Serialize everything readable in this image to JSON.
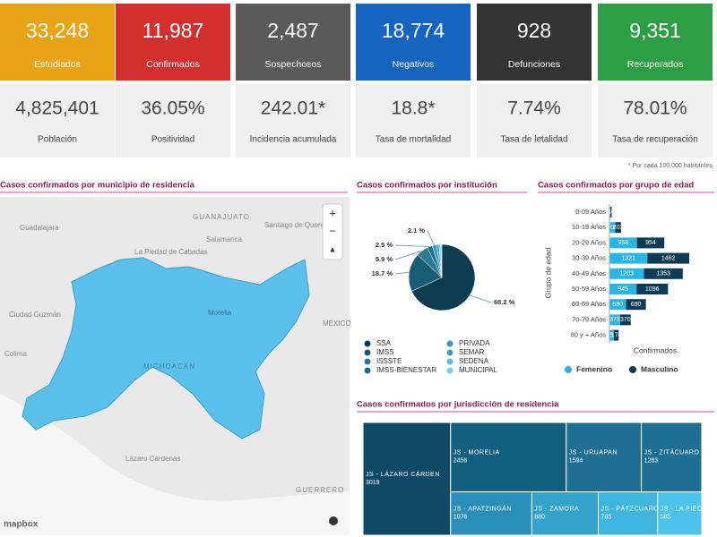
{
  "kpi_cards": [
    {
      "value": "33,248",
      "label": "Estudiados",
      "color": "#e8a317"
    },
    {
      "value": "11,987",
      "label": "Confirmados",
      "color": "#d32f2f"
    },
    {
      "value": "2,487",
      "label": "Sospechosos",
      "color": "#5a5a5a"
    },
    {
      "value": "18,774",
      "label": "Negativos",
      "color": "#1565c0"
    },
    {
      "value": "928",
      "label": "Defunciones",
      "color": "#333333"
    },
    {
      "value": "9,351",
      "label": "Recuperados",
      "color": "#2e9e44"
    }
  ],
  "rate_cards": [
    {
      "value": "4,825,401",
      "label": "Población"
    },
    {
      "value": "36.05%",
      "label": "Positividad"
    },
    {
      "value": "242.01*",
      "label": "Incidencia acumulada"
    },
    {
      "value": "18.8*",
      "label": "Tasa de mortalidad"
    },
    {
      "value": "7.74%",
      "label": "Tasa de letalidad"
    },
    {
      "value": "78.01%",
      "label": "Tasa de recuperación"
    }
  ],
  "footnote": "* Por cada 100,000 habitantes",
  "map": {
    "title": "Casos confirmados por municipio de residencia",
    "places": [
      "Guadalajara",
      "GUANAJUATO",
      "Santiago de Querétaro",
      "Salamanca",
      "La Piedad de Cabadas",
      "Ciudad Guzmán",
      "Colima",
      "MICHOACÁN",
      "Morelia",
      "MÉXICO",
      "GUERRERO",
      "Lázaro Cárdenas"
    ],
    "attribution": "mapbox"
  },
  "chart_data": [
    {
      "type": "pie",
      "title": "Casos confirmados por institución",
      "categories": [
        "SSA",
        "IMSS",
        "ISSSTE",
        "IMSS-BIENESTAR",
        "PRIVADA",
        "SEMAR",
        "SEDENA",
        "MUNICIPAL"
      ],
      "values": [
        68.2,
        18.7,
        5.9,
        2.5,
        2.1,
        1.2,
        0.8,
        0.6
      ],
      "value_labels": [
        "68.2 %",
        "18.7 %",
        "5.9 %",
        "2.5 %",
        "2.1 %",
        null,
        null,
        null
      ],
      "colors": [
        "#0d3b4f",
        "#1a5c73",
        "#2a7a94",
        "#1f6f8a",
        "#3c9ab8",
        "#3aa0c0",
        "#5bbfdf",
        "#6fd0ee"
      ]
    },
    {
      "type": "bar",
      "orientation": "horizontal",
      "stacked": true,
      "title": "Casos confirmados por grupo de edad",
      "x_label": "Confirmados",
      "y_label": "Grupo de edad",
      "categories": [
        "0-09 Años",
        "10-19 Años",
        "20-29 Años",
        "30-39 Años",
        "40-49 Años",
        "50-59 Años",
        "60-69 Años",
        "70-79 Años",
        "80 y + Años"
      ],
      "series": [
        {
          "name": "Femenino",
          "color": "#29b6e6",
          "values": [
            38,
            200,
            958,
            1321,
            1203,
            945,
            580,
            373,
            150
          ]
        },
        {
          "name": "Masculino",
          "color": "#0d3b56",
          "values": [
            40,
            203,
            954,
            1462,
            1353,
            1096,
            690,
            370,
            170
          ]
        }
      ],
      "xlim": [
        0,
        3000
      ]
    },
    {
      "type": "treemap",
      "title": "Casos confirmados por jurisdicción de residencia",
      "categories": [
        "JS - LÁZARO CÁRDEN",
        "JS - MORELIA",
        "JS - URUAPAN",
        "JS - ZITÁCUARO",
        "JS - APATZINGÁN",
        "JS - ZAMORA",
        "JS - PÁTZCUARO",
        "JS - LA PIEDAD"
      ],
      "values": [
        3019,
        2456,
        1594,
        1283,
        1076,
        880,
        785,
        585
      ],
      "colors": [
        "#0e4a66",
        "#145f80",
        "#1e6f92",
        "#1e6f92",
        "#2a8fb8",
        "#33a3cc",
        "#3fb4dc",
        "#4cc3ea"
      ]
    }
  ]
}
